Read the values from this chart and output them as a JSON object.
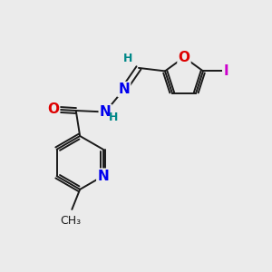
{
  "background_color": "#ebebeb",
  "bond_color": "#1a1a1a",
  "atom_colors": {
    "N": "#0000ee",
    "O": "#dd0000",
    "I": "#cc00cc",
    "H": "#008888",
    "C": "#1a1a1a"
  },
  "font_size_atoms": 11,
  "font_size_h": 9,
  "figsize": [
    3.0,
    3.0
  ],
  "dpi": 100
}
